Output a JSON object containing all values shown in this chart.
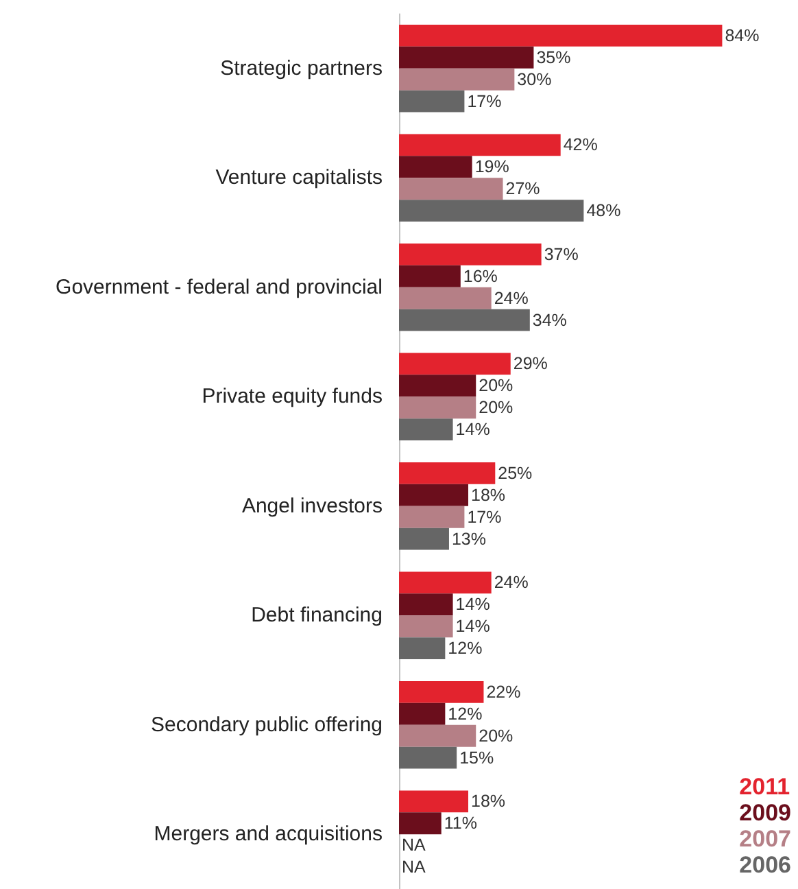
{
  "chart_data": {
    "type": "bar",
    "orientation": "horizontal",
    "legend": "bottom right",
    "categories": [
      "Strategic partners",
      "Venture capitalists",
      "Government - federal and provincial",
      "Private equity funds",
      "Angel investors",
      "Debt financing",
      "Secondary public offering",
      "Mergers and acquisitions"
    ],
    "series": [
      {
        "name": "2011",
        "color": "#e3232e",
        "values": [
          84,
          42,
          37,
          29,
          25,
          24,
          22,
          18
        ],
        "value_labels": [
          "84%",
          "42%",
          "37%",
          "29%",
          "25%",
          "24%",
          "22%",
          "18%"
        ]
      },
      {
        "name": "2009",
        "color": "#6b0e1c",
        "values": [
          35,
          19,
          16,
          20,
          18,
          14,
          12,
          11
        ],
        "value_labels": [
          "35%",
          "19%",
          "16%",
          "20%",
          "18%",
          "14%",
          "12%",
          "11%"
        ]
      },
      {
        "name": "2007",
        "color": "#b57f86",
        "values": [
          30,
          27,
          24,
          20,
          17,
          14,
          20,
          null
        ],
        "value_labels": [
          "30%",
          "27%",
          "24%",
          "20%",
          "17%",
          "14%",
          "20%",
          "NA"
        ]
      },
      {
        "name": "2006",
        "color": "#666666",
        "values": [
          17,
          48,
          34,
          14,
          13,
          12,
          15,
          null
        ],
        "value_labels": [
          "17%",
          "48%",
          "34%",
          "14%",
          "13%",
          "12%",
          "15%",
          "NA"
        ]
      }
    ]
  }
}
